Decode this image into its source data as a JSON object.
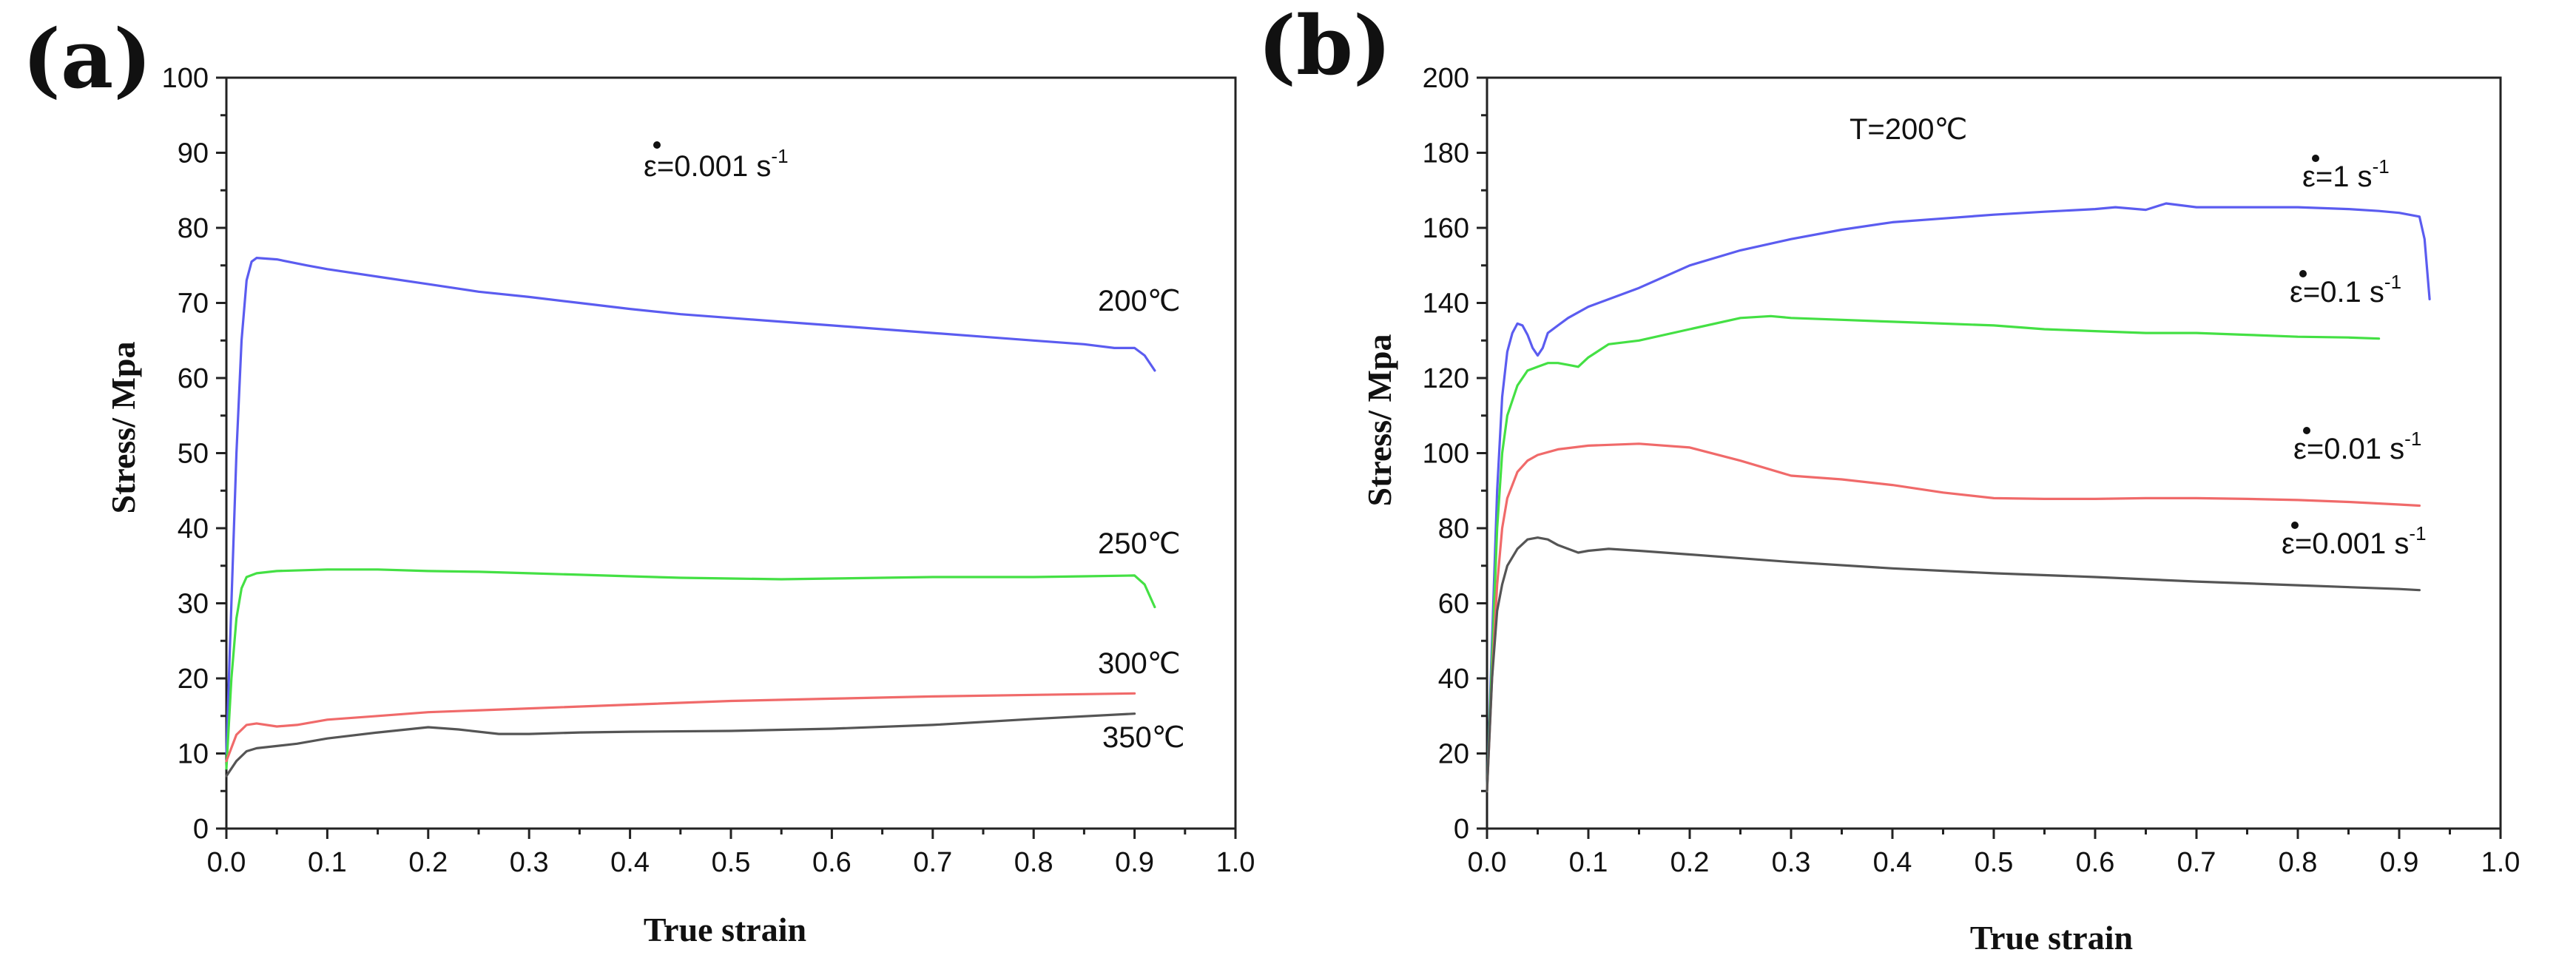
{
  "chart_data": [
    {
      "type": "line",
      "panel_label": "(a)",
      "title": "",
      "xlabel": "True strain",
      "ylabel": "Stress/ Mpa",
      "xlim": [
        0.0,
        1.0
      ],
      "ylim": [
        0,
        100
      ],
      "xticks": [
        "0.0",
        "0.1",
        "0.2",
        "0.3",
        "0.4",
        "0.5",
        "0.6",
        "0.7",
        "0.8",
        "0.9",
        "1.0"
      ],
      "yticks": [
        "0",
        "10",
        "20",
        "30",
        "40",
        "50",
        "60",
        "70",
        "80",
        "90",
        "100"
      ],
      "condition_text": "ε=0.001 s",
      "condition_sup": "-1",
      "series": [
        {
          "name": "200℃",
          "color": "#5b5cf0",
          "x": [
            0.0,
            0.005,
            0.01,
            0.015,
            0.02,
            0.025,
            0.03,
            0.05,
            0.08,
            0.1,
            0.15,
            0.2,
            0.25,
            0.3,
            0.35,
            0.4,
            0.45,
            0.5,
            0.55,
            0.6,
            0.65,
            0.7,
            0.75,
            0.8,
            0.85,
            0.88,
            0.9,
            0.91,
            0.92
          ],
          "y": [
            10,
            30,
            50,
            65,
            73,
            75.5,
            76,
            75.8,
            75,
            74.5,
            73.5,
            72.5,
            71.5,
            70.8,
            70,
            69.2,
            68.5,
            68,
            67.5,
            67,
            66.5,
            66,
            65.5,
            65,
            64.5,
            64,
            64,
            63,
            61
          ]
        },
        {
          "name": "250℃",
          "color": "#44e044",
          "x": [
            0.0,
            0.005,
            0.01,
            0.015,
            0.02,
            0.03,
            0.05,
            0.1,
            0.15,
            0.2,
            0.25,
            0.3,
            0.35,
            0.4,
            0.45,
            0.5,
            0.55,
            0.6,
            0.65,
            0.7,
            0.75,
            0.8,
            0.85,
            0.9,
            0.91,
            0.92
          ],
          "y": [
            8,
            20,
            28,
            32,
            33.5,
            34,
            34.3,
            34.5,
            34.5,
            34.3,
            34.2,
            34,
            33.8,
            33.6,
            33.4,
            33.3,
            33.2,
            33.3,
            33.4,
            33.5,
            33.5,
            33.5,
            33.6,
            33.7,
            32.5,
            29.5
          ]
        },
        {
          "name": "300℃",
          "color": "#f06a6a",
          "x": [
            0.0,
            0.01,
            0.02,
            0.03,
            0.05,
            0.07,
            0.1,
            0.15,
            0.2,
            0.3,
            0.4,
            0.5,
            0.6,
            0.7,
            0.8,
            0.9
          ],
          "y": [
            9,
            12.5,
            13.8,
            14,
            13.6,
            13.8,
            14.5,
            15,
            15.5,
            16,
            16.5,
            17,
            17.3,
            17.6,
            17.8,
            18
          ]
        },
        {
          "name": "350℃",
          "color": "#555555",
          "x": [
            0.0,
            0.01,
            0.02,
            0.03,
            0.05,
            0.07,
            0.1,
            0.15,
            0.2,
            0.23,
            0.27,
            0.3,
            0.35,
            0.4,
            0.5,
            0.6,
            0.7,
            0.8,
            0.9
          ],
          "y": [
            7,
            9,
            10.3,
            10.7,
            11,
            11.3,
            12,
            12.8,
            13.5,
            13.2,
            12.6,
            12.6,
            12.8,
            12.9,
            13,
            13.3,
            13.8,
            14.6,
            15.3
          ]
        }
      ]
    },
    {
      "type": "line",
      "panel_label": "(b)",
      "title": "T=200℃",
      "xlabel": "True strain",
      "ylabel": "Stress/ Mpa",
      "xlim": [
        0.0,
        1.0
      ],
      "ylim": [
        0,
        200
      ],
      "xticks": [
        "0.0",
        "0.1",
        "0.2",
        "0.3",
        "0.4",
        "0.5",
        "0.6",
        "0.7",
        "0.8",
        "0.9",
        "1.0"
      ],
      "yticks": [
        "0",
        "20",
        "40",
        "60",
        "80",
        "100",
        "120",
        "140",
        "160",
        "180",
        "200"
      ],
      "series": [
        {
          "name": "ε=1  s",
          "sup": "-1",
          "color": "#5b5cf0",
          "x": [
            0.0,
            0.005,
            0.01,
            0.015,
            0.02,
            0.025,
            0.03,
            0.035,
            0.04,
            0.045,
            0.05,
            0.055,
            0.06,
            0.07,
            0.08,
            0.1,
            0.15,
            0.2,
            0.25,
            0.3,
            0.35,
            0.4,
            0.45,
            0.5,
            0.55,
            0.6,
            0.62,
            0.65,
            0.67,
            0.7,
            0.75,
            0.8,
            0.85,
            0.88,
            0.9,
            0.92,
            0.925,
            0.93
          ],
          "y": [
            10,
            50,
            90,
            115,
            127,
            132,
            134.5,
            134,
            131.5,
            128,
            126,
            128,
            132,
            134,
            136,
            139,
            144,
            150,
            154,
            157,
            159.5,
            161.5,
            162.5,
            163.5,
            164.3,
            165,
            165.5,
            164.8,
            166.5,
            165.5,
            165.5,
            165.5,
            165,
            164.5,
            164,
            163,
            157,
            141
          ]
        },
        {
          "name": "ε=0.1 s",
          "sup": "-1",
          "color": "#44e044",
          "x": [
            0.0,
            0.005,
            0.01,
            0.015,
            0.02,
            0.03,
            0.04,
            0.05,
            0.06,
            0.07,
            0.08,
            0.09,
            0.1,
            0.12,
            0.15,
            0.2,
            0.25,
            0.28,
            0.3,
            0.35,
            0.4,
            0.45,
            0.5,
            0.55,
            0.6,
            0.65,
            0.7,
            0.75,
            0.8,
            0.85,
            0.88
          ],
          "y": [
            10,
            45,
            80,
            100,
            110,
            118,
            122,
            123,
            124,
            124,
            123.5,
            123,
            125.5,
            129,
            130,
            133,
            136,
            136.5,
            136,
            135.5,
            135,
            134.5,
            134,
            133,
            132.5,
            132,
            132,
            131.5,
            131,
            130.8,
            130.5
          ]
        },
        {
          "name": "ε=0.01 s",
          "sup": "-1",
          "color": "#f06a6a",
          "x": [
            0.0,
            0.005,
            0.01,
            0.015,
            0.02,
            0.03,
            0.04,
            0.05,
            0.07,
            0.1,
            0.15,
            0.2,
            0.25,
            0.3,
            0.35,
            0.4,
            0.45,
            0.5,
            0.55,
            0.6,
            0.65,
            0.7,
            0.75,
            0.8,
            0.85,
            0.9,
            0.92
          ],
          "y": [
            10,
            40,
            65,
            80,
            88,
            95,
            98,
            99.5,
            101,
            102,
            102.5,
            101.5,
            98,
            94,
            93,
            91.5,
            89.5,
            88,
            87.8,
            87.8,
            88,
            88,
            87.8,
            87.5,
            87,
            86.3,
            86
          ]
        },
        {
          "name": "ε=0.001 s",
          "sup": "-1",
          "color": "#555555",
          "x": [
            0.0,
            0.005,
            0.01,
            0.015,
            0.02,
            0.03,
            0.04,
            0.05,
            0.06,
            0.07,
            0.08,
            0.09,
            0.1,
            0.12,
            0.15,
            0.2,
            0.3,
            0.4,
            0.5,
            0.6,
            0.7,
            0.8,
            0.9,
            0.92
          ],
          "y": [
            10,
            40,
            58,
            65,
            70,
            74.5,
            77,
            77.5,
            77,
            75.5,
            74.5,
            73.5,
            74,
            74.5,
            74,
            73,
            71,
            69.3,
            68,
            67,
            65.8,
            64.8,
            63.8,
            63.5
          ]
        }
      ]
    }
  ]
}
